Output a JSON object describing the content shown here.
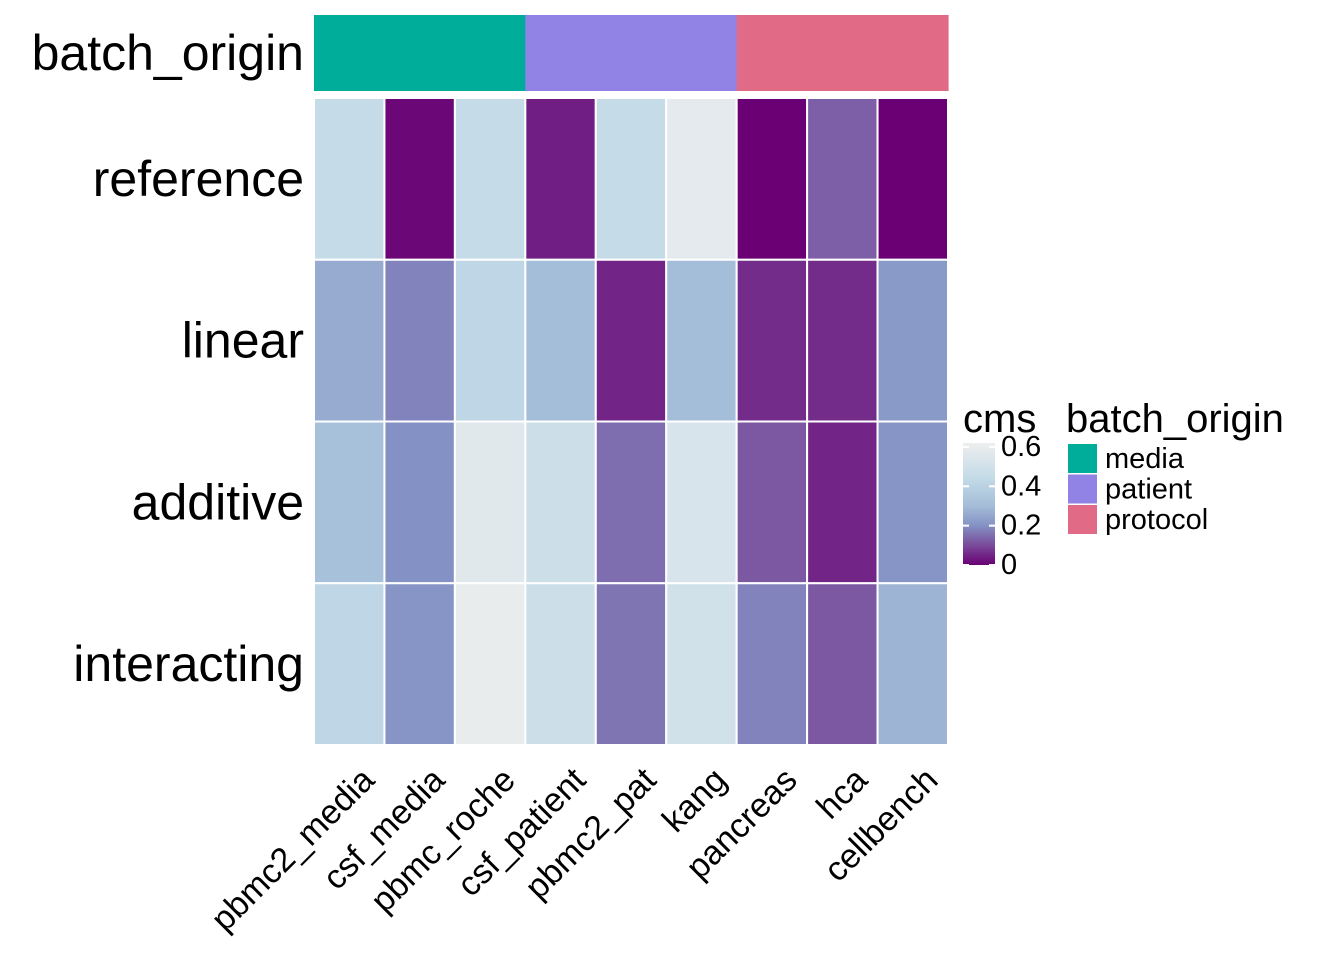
{
  "chart_data": {
    "type": "heatmap",
    "x_categories": [
      "pbmc2_media",
      "csf_media",
      "pbmc_roche",
      "csf_patient",
      "pbmc2_pat",
      "kang",
      "pancreas",
      "hca",
      "cellbench"
    ],
    "y_categories": [
      "reference",
      "linear",
      "additive",
      "interacting"
    ],
    "values": [
      [
        0.45,
        0.01,
        0.45,
        0.04,
        0.45,
        0.58,
        0.0,
        0.13,
        0.0
      ],
      [
        0.26,
        0.18,
        0.42,
        0.3,
        0.05,
        0.3,
        0.06,
        0.06,
        0.22
      ],
      [
        0.32,
        0.2,
        0.56,
        0.48,
        0.15,
        0.53,
        0.12,
        0.05,
        0.21
      ],
      [
        0.42,
        0.21,
        0.6,
        0.48,
        0.16,
        0.5,
        0.18,
        0.12,
        0.28
      ]
    ],
    "annotation": {
      "label": "batch_origin",
      "values": [
        "media",
        "media",
        "media",
        "patient",
        "patient",
        "patient",
        "protocol",
        "protocol",
        "protocol"
      ]
    },
    "color_scale": {
      "title": "cms",
      "min": 0,
      "max": 0.62,
      "ticks": [
        0,
        0.2,
        0.4,
        0.6
      ],
      "tick_labels": [
        "0",
        "0.2",
        "0.4",
        "0.6"
      ],
      "stops": [
        {
          "v": 0.0,
          "color": "#6a0074"
        },
        {
          "v": 0.1,
          "color": "#7a4a9a"
        },
        {
          "v": 0.2,
          "color": "#8491c4"
        },
        {
          "v": 0.3,
          "color": "#a4bdd8"
        },
        {
          "v": 0.45,
          "color": "#c5dce8"
        },
        {
          "v": 0.62,
          "color": "#eeeeee"
        }
      ]
    },
    "legend": {
      "title": "batch_origin",
      "items": [
        {
          "label": "media",
          "color": "#00ad9a"
        },
        {
          "label": "patient",
          "color": "#9183e5"
        },
        {
          "label": "protocol",
          "color": "#e16a86"
        }
      ],
      "position": "right"
    }
  }
}
